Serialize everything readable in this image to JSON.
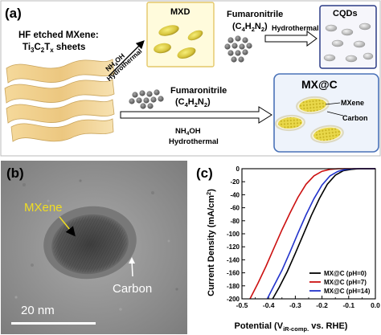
{
  "panel_a": {
    "label": "(a)",
    "left_title": "HF etched MXene:",
    "left_formula": {
      "base": "Ti",
      "s1": "3",
      "mid": "C",
      "s2": "2",
      "mid2": "T",
      "s3": "x",
      "tail": " sheets"
    },
    "arrow_up_line1": "NH",
    "arrow_up_line1_sub": "4",
    "arrow_up_line1_tail": "OH",
    "arrow_up_line2": "Hydrothermal",
    "mxd_label": "MXD",
    "fum_top": {
      "name": "Fumaronitrile",
      "formula_parts": [
        "(C",
        "4",
        "H",
        "2",
        "N",
        "2",
        ")"
      ]
    },
    "arrow_right_label": "Hydrothermal",
    "cqds_label": "CQDs",
    "fum_bottom": {
      "name": "Fumaronitrile",
      "formula_parts": [
        "(C",
        "4",
        "H",
        "2",
        "N",
        "2",
        ")"
      ]
    },
    "bottom_arrow_line1": "NH",
    "bottom_arrow_line1_sub": "4",
    "bottom_arrow_line1_tail": "OH",
    "bottom_arrow_line2": "Hydrothermal",
    "mxc_label": "MX@C",
    "mxc_mxene": "MXene",
    "mxc_carbon": "Carbon"
  },
  "panel_b": {
    "label": "(b)",
    "mxene": "MXene",
    "carbon": "Carbon",
    "scale": "20 nm"
  },
  "panel_c": {
    "label": "(c)",
    "colors": {
      "black": "#000000",
      "red": "#cc1111",
      "blue": "#2233cc"
    },
    "chart_data": {
      "type": "line",
      "xlabel": "Potential (V",
      "xlabel_sub": "iR-comp.",
      "xlabel_tail": " vs. RHE)",
      "ylabel": "Current Density (mA/cm",
      "ylabel_sup": "2",
      "ylabel_tail": ")",
      "xlim": [
        -0.5,
        0.0
      ],
      "ylim": [
        -200,
        0
      ],
      "xticks": [
        -0.5,
        -0.4,
        -0.3,
        -0.2,
        -0.1,
        0.0
      ],
      "xtick_labels": [
        "-0.5",
        "-0.4",
        "-0.3",
        "-0.2",
        "-0.1",
        "0.0"
      ],
      "yticks": [
        -200,
        -180,
        -160,
        -140,
        -120,
        -100,
        -80,
        -60,
        -40,
        -20,
        0
      ],
      "ytick_labels": [
        "-200",
        "-180",
        "-160",
        "-140",
        "-120",
        "-100",
        "-80",
        "-60",
        "-40",
        "-20",
        "0"
      ],
      "legend_position": "bottom-right",
      "series": [
        {
          "name": "MX@C (pH=0)",
          "color": "#000000",
          "x": [
            -0.385,
            -0.36,
            -0.33,
            -0.3,
            -0.27,
            -0.24,
            -0.21,
            -0.18,
            -0.15,
            -0.12,
            -0.09,
            -0.06,
            -0.04,
            0.0
          ],
          "y": [
            -200,
            -182,
            -158,
            -130,
            -101,
            -72,
            -46,
            -24,
            -10,
            -3,
            -1,
            0,
            0,
            0
          ]
        },
        {
          "name": "MX@C (pH=7)",
          "color": "#cc1111",
          "x": [
            -0.47,
            -0.44,
            -0.41,
            -0.38,
            -0.35,
            -0.32,
            -0.29,
            -0.26,
            -0.23,
            -0.2,
            -0.17,
            -0.14,
            -0.1,
            0.0
          ],
          "y": [
            -200,
            -176,
            -150,
            -122,
            -94,
            -68,
            -44,
            -24,
            -11,
            -4,
            -1,
            0,
            0,
            0
          ]
        },
        {
          "name": "MX@C (pH=14)",
          "color": "#2233cc",
          "x": [
            -0.405,
            -0.38,
            -0.35,
            -0.32,
            -0.29,
            -0.26,
            -0.23,
            -0.2,
            -0.17,
            -0.14,
            -0.11,
            -0.08,
            -0.05,
            0.0
          ],
          "y": [
            -200,
            -180,
            -156,
            -128,
            -99,
            -71,
            -46,
            -25,
            -11,
            -4,
            -1,
            0,
            0,
            0
          ]
        }
      ]
    }
  }
}
